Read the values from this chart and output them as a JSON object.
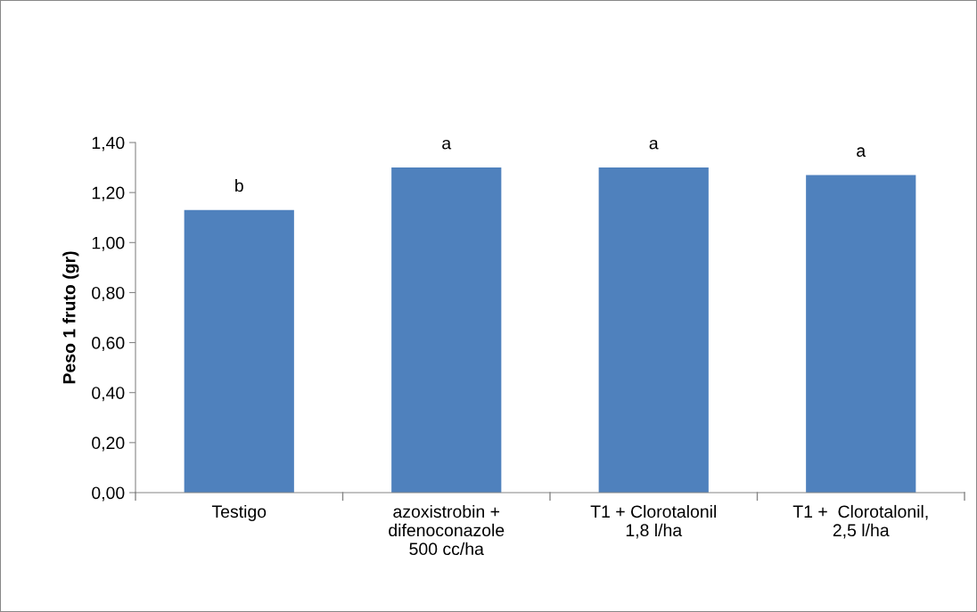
{
  "chart_data": {
    "type": "bar",
    "ylabel": "Peso 1 fruto (gr)",
    "categories": [
      "Testigo",
      "azoxistrobin +\ndifenoconazole\n500 cc/ha",
      "T1 + Clorotalonil\n1,8 l/ha",
      "T1 +  Clorotalonil,\n2,5 l/ha"
    ],
    "values": [
      1.13,
      1.3,
      1.3,
      1.27
    ],
    "color": "#4f81bd",
    "ylim": [
      0,
      1.4
    ],
    "yticks": [
      {
        "value": 0,
        "label": "0,00"
      },
      {
        "value": 0.2,
        "label": "0,20"
      },
      {
        "value": 0.4,
        "label": "0,40"
      },
      {
        "value": 0.6,
        "label": "0,60"
      },
      {
        "value": 0.8,
        "label": "0,80"
      },
      {
        "value": 1.0,
        "label": "1,00"
      },
      {
        "value": 1.2,
        "label": "1,20"
      },
      {
        "value": 1.4,
        "label": "1,40"
      }
    ],
    "annotations": [
      {
        "text": "b",
        "x": "Testigo",
        "y": 1.13
      },
      {
        "text": "a",
        "x": "azoxistrobin +\ndifenoconazole\n500 cc/ha",
        "y": 1.3
      },
      {
        "text": "a",
        "x": "T1 + Clorotalonil\n1,8 l/ha",
        "y": 1.3
      },
      {
        "text": "a",
        "x": "T1 +  Clorotalonil,\n2,5 l/ha",
        "y": 1.27
      }
    ],
    "grid": false,
    "legend": false
  }
}
